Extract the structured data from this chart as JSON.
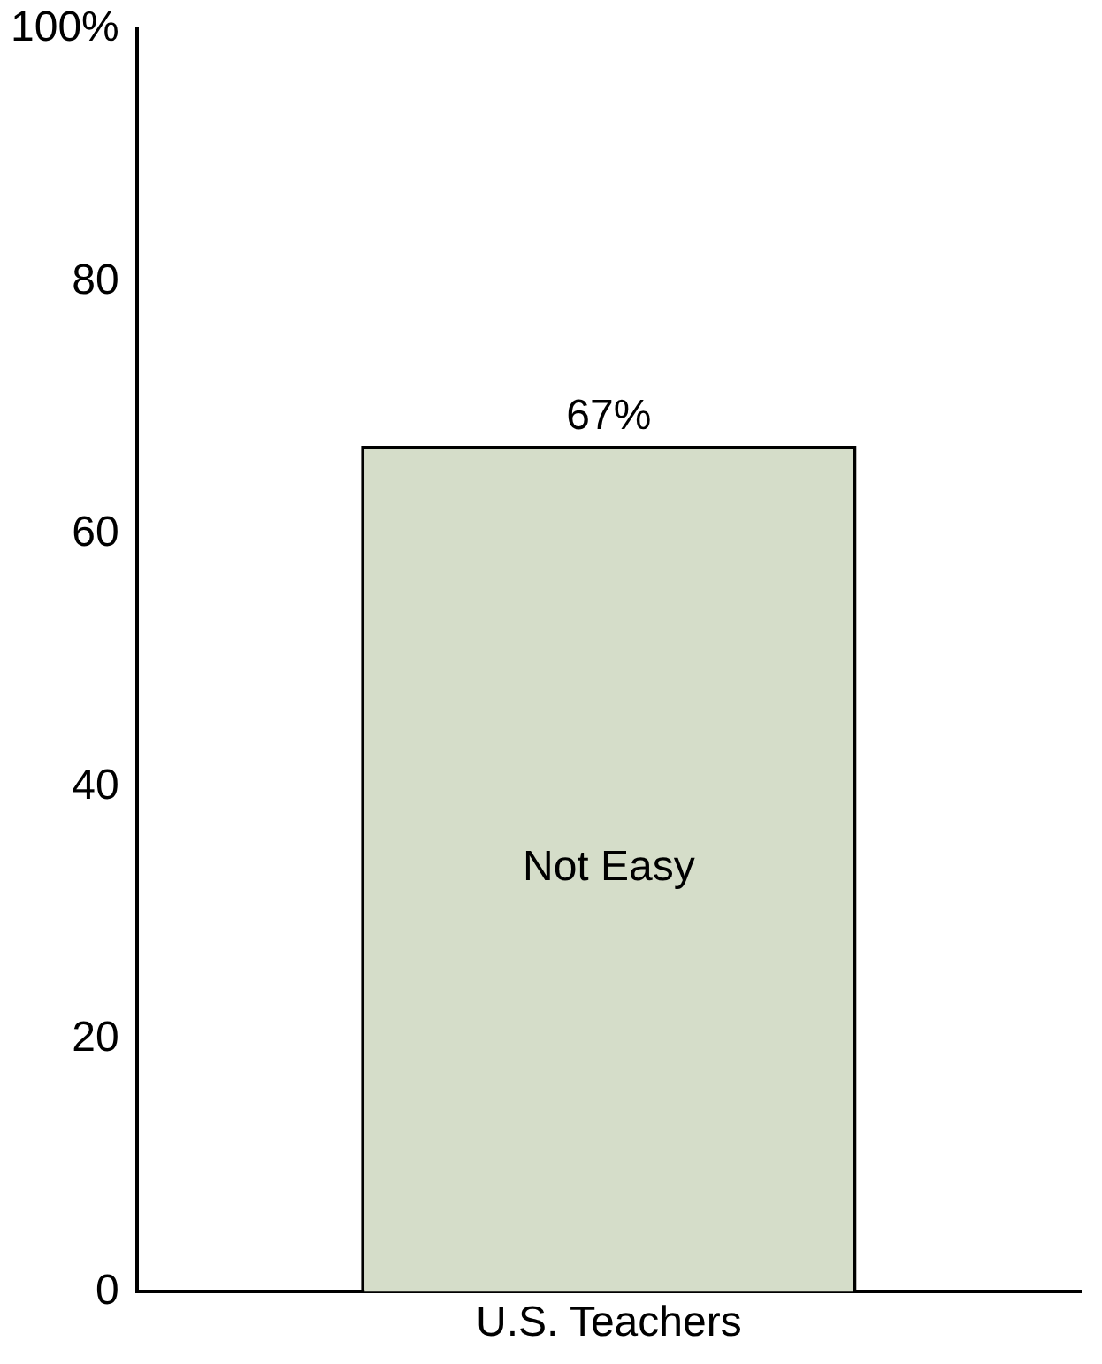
{
  "chart_data": {
    "type": "bar",
    "categories": [
      "U.S. Teachers"
    ],
    "series": [
      {
        "name": "Not Easy",
        "color": "#d5ddc9",
        "values": [
          67
        ],
        "value_labels": [
          "67%"
        ]
      }
    ],
    "ylim": [
      0,
      100
    ],
    "yticks": [
      0,
      20,
      40,
      60,
      80,
      {
        "value": 100,
        "label": "100%"
      }
    ]
  }
}
